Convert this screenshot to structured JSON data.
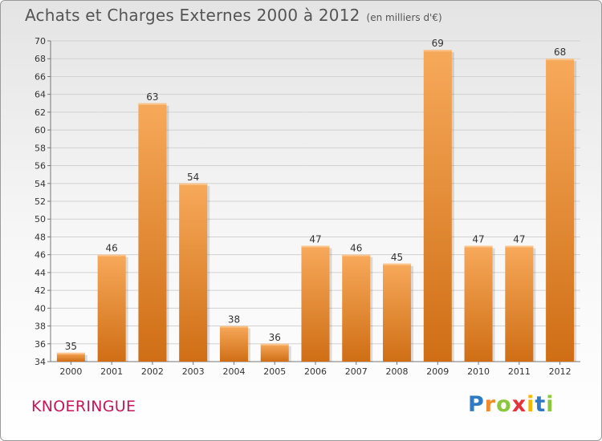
{
  "chart_data": {
    "type": "bar",
    "title": "Achats et Charges Externes 2000 à 2012",
    "subtitle": "(en milliers d'€)",
    "categories": [
      "2000",
      "2001",
      "2002",
      "2003",
      "2004",
      "2005",
      "2006",
      "2007",
      "2008",
      "2009",
      "2010",
      "2011",
      "2012"
    ],
    "values": [
      35,
      46,
      63,
      54,
      38,
      36,
      47,
      46,
      45,
      69,
      47,
      47,
      68
    ],
    "ylim": [
      34,
      70
    ],
    "yticks": [
      34,
      36,
      38,
      40,
      42,
      44,
      46,
      48,
      50,
      52,
      54,
      56,
      58,
      60,
      62,
      64,
      66,
      68,
      70
    ],
    "grid": true,
    "bar_color": "#F0953A"
  },
  "commune": "KNOERINGUE",
  "logo": {
    "letters": [
      "P",
      "r",
      "o",
      "x",
      "i",
      "t",
      "i"
    ],
    "colors": [
      "#2E7BC4",
      "#F28A2E",
      "#8CC63F",
      "#E5333C",
      "#F5B800",
      "#2E7BC4",
      "#8CC63F"
    ]
  }
}
